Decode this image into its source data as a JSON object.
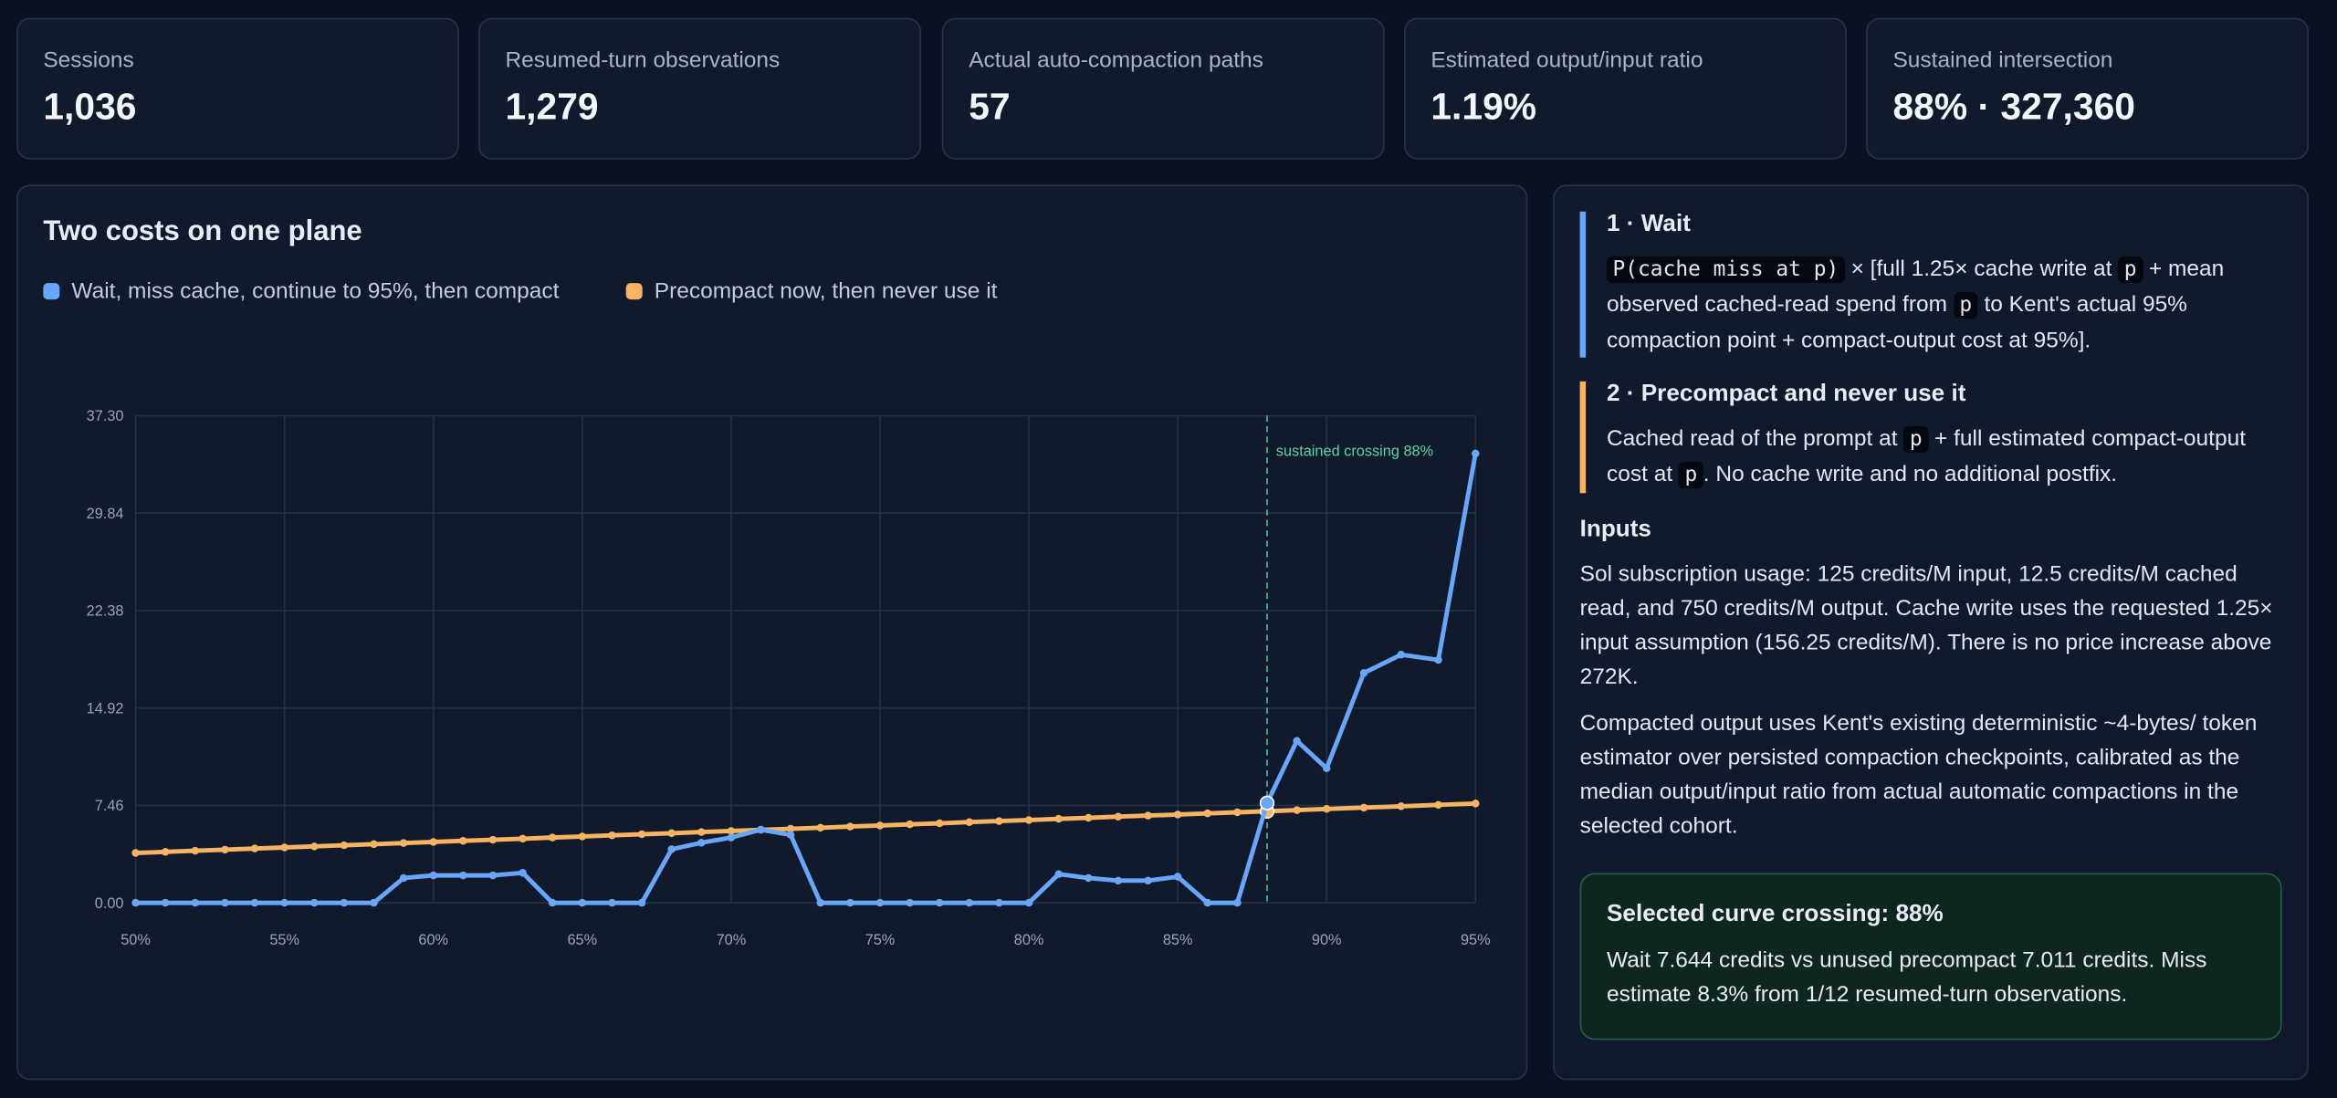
{
  "stats": [
    {
      "label": "Sessions",
      "value": "1,036"
    },
    {
      "label": "Resumed-turn observations",
      "value": "1,279"
    },
    {
      "label": "Actual auto-compaction paths",
      "value": "57"
    },
    {
      "label": "Estimated output/input ratio",
      "value": "1.19%"
    },
    {
      "label": "Sustained intersection",
      "value": "88% · 327,360"
    }
  ],
  "chart_data": {
    "type": "line",
    "title": "Two costs on one plane",
    "x": [
      50,
      51,
      52,
      53,
      54,
      55,
      56,
      57,
      58,
      59,
      60,
      61,
      62,
      63,
      64,
      65,
      66,
      67,
      68,
      69,
      70,
      71,
      72,
      73,
      74,
      75,
      76,
      77,
      78,
      79,
      80,
      81,
      82,
      83,
      84,
      85,
      86,
      87,
      88,
      89,
      90,
      91.25,
      92.5,
      93.75,
      95
    ],
    "series": [
      {
        "name": "Wait, miss cache, continue to 95%, then compact",
        "color": "#6aa6f8",
        "values": [
          0,
          0,
          0,
          0,
          0,
          0,
          0,
          0,
          0,
          1.9,
          2.1,
          2.1,
          2.1,
          2.3,
          0,
          0,
          0,
          0,
          4.1,
          4.6,
          5.0,
          5.6,
          5.2,
          0,
          0,
          0,
          0,
          0,
          0,
          0,
          0,
          2.2,
          1.9,
          1.7,
          1.7,
          2.0,
          0,
          0,
          7.644,
          12.4,
          10.3,
          17.6,
          19.0,
          18.6,
          34.4
        ]
      },
      {
        "name": "Precompact now, then never use it",
        "color": "#f7b463",
        "values": [
          3.82,
          3.9,
          3.99,
          4.07,
          4.16,
          4.24,
          4.32,
          4.41,
          4.49,
          4.58,
          4.66,
          4.75,
          4.83,
          4.91,
          5.0,
          5.08,
          5.17,
          5.25,
          5.33,
          5.42,
          5.5,
          5.59,
          5.67,
          5.75,
          5.84,
          5.92,
          6.01,
          6.09,
          6.18,
          6.26,
          6.34,
          6.43,
          6.51,
          6.6,
          6.68,
          6.76,
          6.85,
          6.93,
          7.011,
          7.1,
          7.19,
          7.29,
          7.39,
          7.5,
          7.6
        ]
      }
    ],
    "xlim": [
      50,
      95
    ],
    "xticks": [
      {
        "value": 50,
        "label": "50%"
      },
      {
        "value": 55,
        "label": "55%"
      },
      {
        "value": 60,
        "label": "60%"
      },
      {
        "value": 65,
        "label": "65%"
      },
      {
        "value": 70,
        "label": "70%"
      },
      {
        "value": 75,
        "label": "75%"
      },
      {
        "value": 80,
        "label": "80%"
      },
      {
        "value": 85,
        "label": "85%"
      },
      {
        "value": 90,
        "label": "90%"
      },
      {
        "value": 95,
        "label": "95%"
      }
    ],
    "ylim": [
      0,
      37.3
    ],
    "yticks": [
      {
        "value": 0,
        "label": "0.00"
      },
      7.46,
      14.92,
      22.38,
      29.84,
      {
        "value": 37.3,
        "label": "37.30"
      }
    ],
    "grid": true,
    "legend": "top-left",
    "crossing": {
      "x": 88,
      "label": "sustained crossing 88%"
    }
  },
  "panel": {
    "sections": [
      {
        "title": "1 · Wait",
        "color": "#6aa6f8",
        "body": [
          {
            "code": "P(cache miss at p)"
          },
          {
            "text": " × [full 1.25× cache write at "
          },
          {
            "code": "p"
          },
          {
            "text": " + mean observed cached-read spend from "
          },
          {
            "code": "p"
          },
          {
            "text": " to Kent's actual 95% compaction point + compact-output cost at 95%]."
          }
        ]
      },
      {
        "title": "2 · Precompact and never use it",
        "color": "#f7b463",
        "body": [
          {
            "text": "Cached read of the prompt at "
          },
          {
            "code": "p"
          },
          {
            "text": " + full estimated compact-output cost at "
          },
          {
            "code": "p"
          },
          {
            "text": ". No cache write and no additional postfix."
          }
        ]
      }
    ],
    "inputs_title": "Inputs",
    "inputs": [
      "Sol subscription usage: 125 credits/M input, 12.5 credits/M cached read, and 750 credits/M output. Cache write uses the requested 1.25× input assumption (156.25 credits/M). There is no price increase above 272K.",
      "Compacted output uses Kent's existing deterministic ~4-bytes/ token estimator over persisted compaction checkpoints, calibrated as the median output/input ratio from actual automatic compactions in the selected cohort."
    ],
    "callout": {
      "title": "Selected curve crossing: 88%",
      "text": "Wait 7.644 credits vs unused precompact 7.011 credits. Miss estimate 8.3% from 1/12 resumed-turn observations."
    }
  }
}
